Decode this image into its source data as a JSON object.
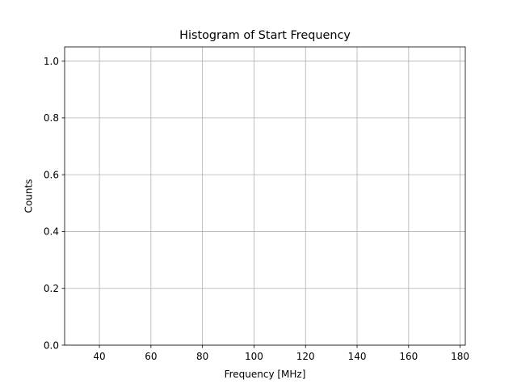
{
  "chart_data": {
    "type": "bar",
    "title": "Histogram of Start Frequency",
    "xlabel": "Frequency [MHz]",
    "ylabel": "Counts",
    "xlim": [
      26.5,
      182
    ],
    "ylim": [
      0,
      1.05
    ],
    "x_ticks": [
      40,
      60,
      80,
      100,
      120,
      140,
      160,
      180
    ],
    "x_tick_labels": [
      "40",
      "60",
      "80",
      "100",
      "120",
      "140",
      "160",
      "180"
    ],
    "y_ticks": [
      0.0,
      0.2,
      0.4,
      0.6,
      0.8,
      1.0
    ],
    "y_tick_labels": [
      "0.0",
      "0.2",
      "0.4",
      "0.6",
      "0.8",
      "1.0"
    ],
    "grid": true,
    "series": [],
    "values": []
  },
  "colors": {
    "grid": "#b0b0b0",
    "axes": "#000000",
    "background": "#ffffff"
  }
}
